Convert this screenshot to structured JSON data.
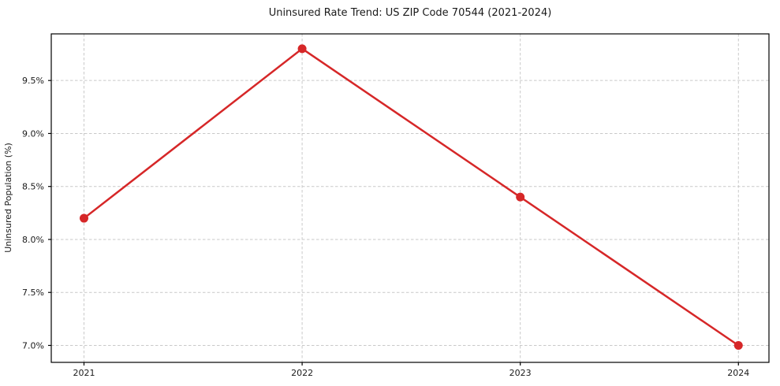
{
  "figure": {
    "title": "Uninsured Rate Trend: US ZIP Code 70544 (2021-2024)"
  },
  "chart_data": {
    "type": "line",
    "title": "Uninsured Rate Trend: US ZIP Code 70544 (2021-2024)",
    "xlabel": "",
    "ylabel": "Uninsured Population (%)",
    "categories": [
      "2021",
      "2022",
      "2023",
      "2024"
    ],
    "x": [
      2021,
      2022,
      2023,
      2024
    ],
    "values": [
      8.2,
      9.8,
      8.4,
      7.0
    ],
    "x_tick_labels": [
      "2021",
      "2022",
      "2023",
      "2024"
    ],
    "y_ticks": [
      7.0,
      7.5,
      8.0,
      8.5,
      9.0,
      9.5
    ],
    "y_tick_labels": [
      "7.0%",
      "7.5%",
      "8.0%",
      "8.5%",
      "9.0%",
      "9.5%"
    ],
    "xlim": [
      2020.85,
      2024.14
    ],
    "ylim": [
      6.84,
      9.94
    ],
    "grid": true,
    "grid_style": "dashed",
    "legend_position": "none",
    "marker": "circle",
    "colors": {
      "line": "#d62728",
      "marker": "#d62728",
      "grid": "#c9c9c9",
      "axis": "#000000",
      "text": "#1a1a1a",
      "background": "#ffffff"
    }
  }
}
